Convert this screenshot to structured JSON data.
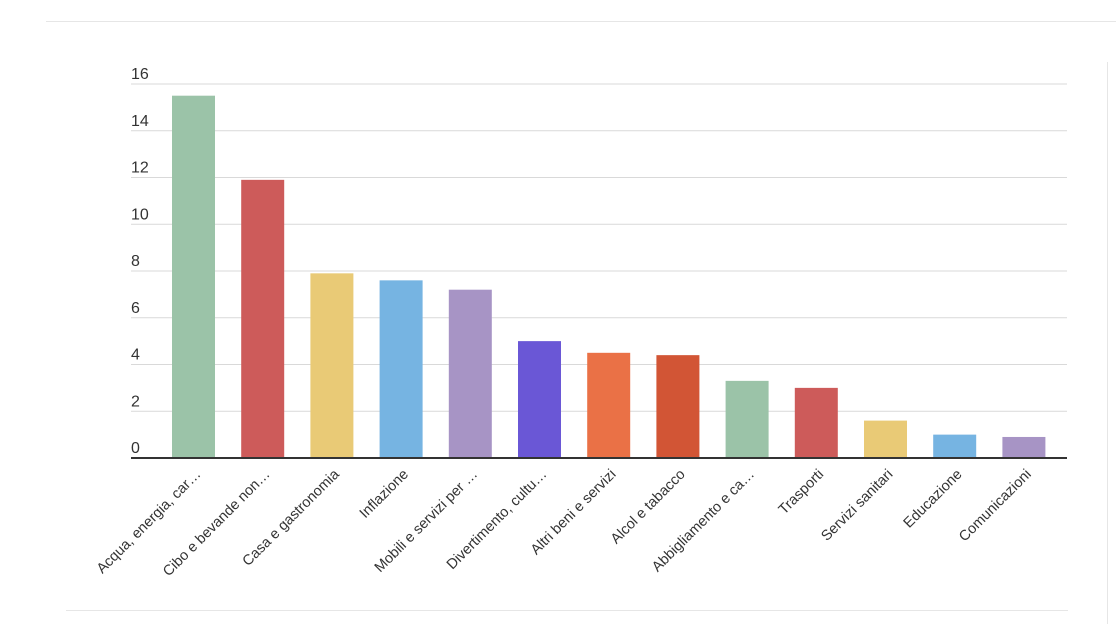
{
  "chart_data": {
    "type": "bar",
    "categories": [
      "Acqua, energia, car…",
      "Cibo e bevande non…",
      "Casa e gastronomia",
      "Inflazione",
      "Mobili e servizi per …",
      "Divertimento, cultu…",
      "Altri beni e servizi",
      "Alcol e tabacco",
      "Abbigliamento e ca…",
      "Trasporti",
      "Servizi sanitari",
      "Educazione",
      "Comunicazioni"
    ],
    "values": [
      15.5,
      11.9,
      7.9,
      7.6,
      7.2,
      5.0,
      4.5,
      4.4,
      3.3,
      3.0,
      1.6,
      1.0,
      0.9
    ],
    "colors": [
      "#9bc3a8",
      "#cd5b5a",
      "#e9ca76",
      "#76b4e2",
      "#a794c5",
      "#6a57d6",
      "#ea7146",
      "#d25535",
      "#9bc3a8",
      "#cd5b5a",
      "#e9ca76",
      "#76b4e2",
      "#a794c5"
    ],
    "yticks": [
      "0",
      "2",
      "4",
      "6",
      "8",
      "10",
      "12",
      "14",
      "16"
    ],
    "ylim": [
      0,
      16
    ],
    "grid": true,
    "gridColor": "#d9d9d9",
    "axisColor": "#333333",
    "legend": "none"
  }
}
